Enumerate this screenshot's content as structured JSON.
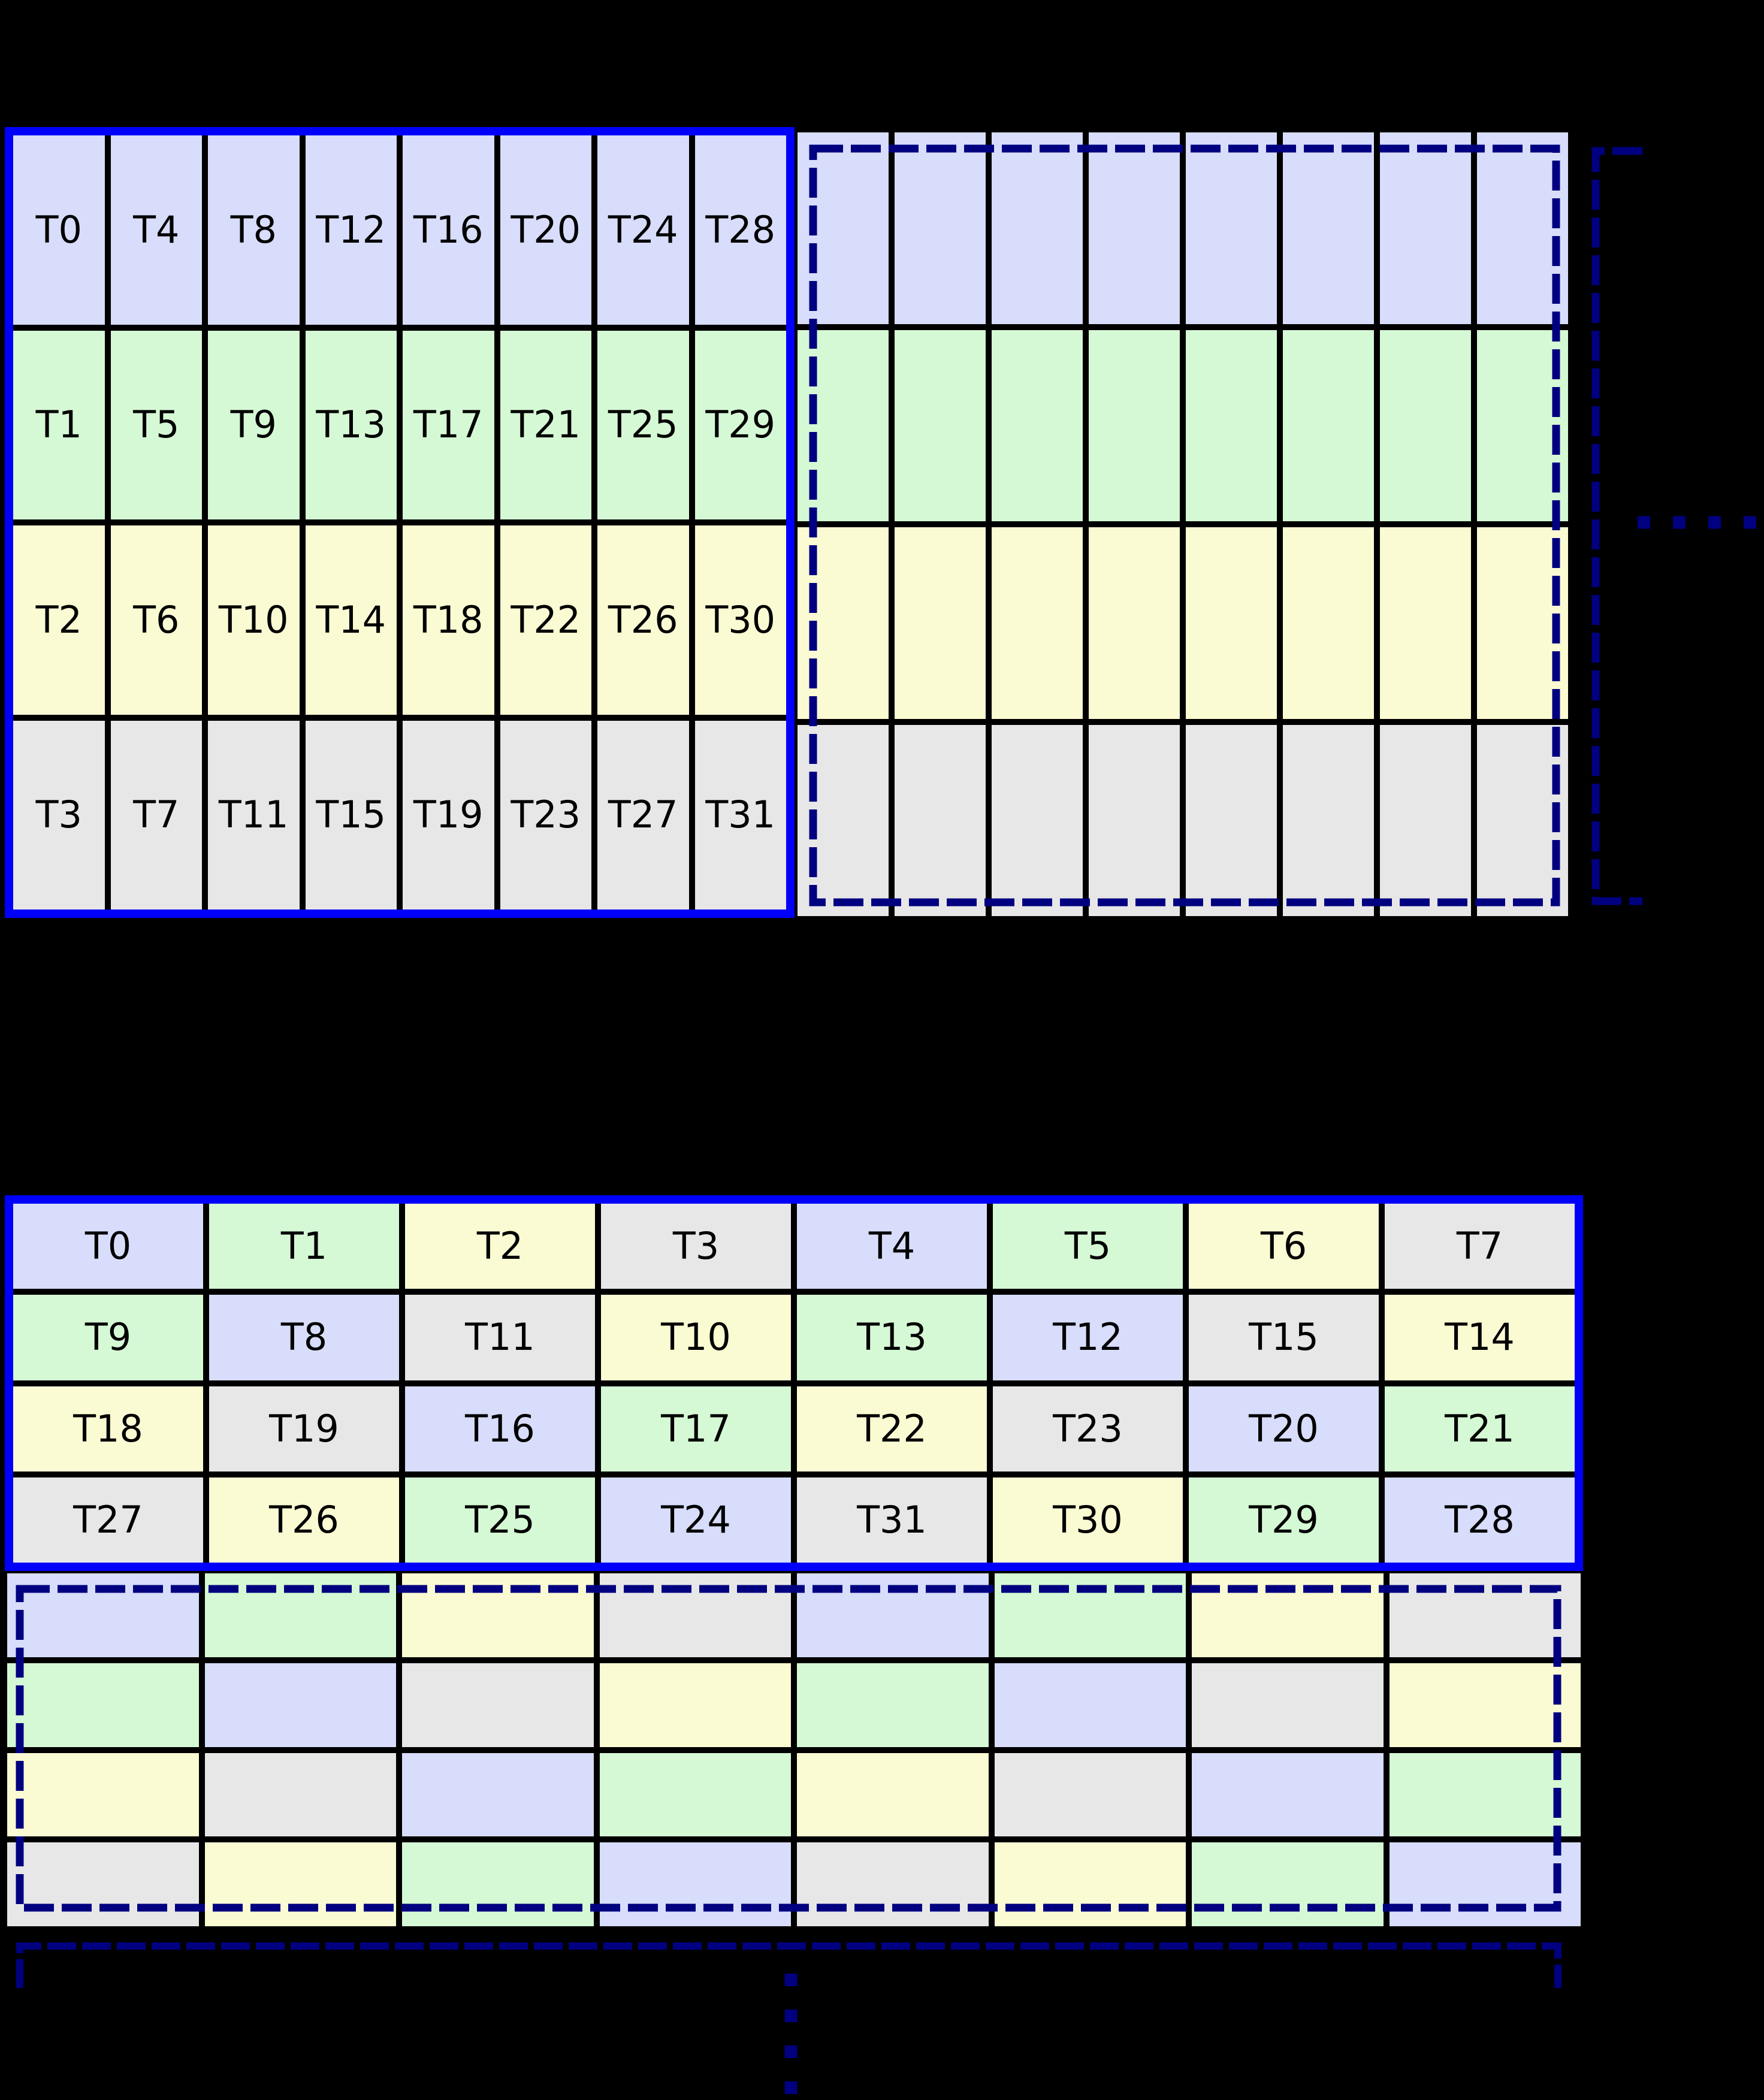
{
  "palette": {
    "background": "#000000",
    "grid_border_blue": "#0000fa",
    "dash_navy": "#000080",
    "cell_border_black": "#000000",
    "text": "#000000",
    "cell_colors": {
      "lavender": "#d7ddfa",
      "green": "#d5f9d4",
      "yellow": "#fbfbd3",
      "gray": "#e7e7e8"
    }
  },
  "color_order": [
    "lavender",
    "green",
    "yellow",
    "gray"
  ],
  "top_section": {
    "labeled_grid": {
      "cols": 8,
      "rows": [
        {
          "colors": [
            0,
            0,
            0,
            0,
            0,
            0,
            0,
            0
          ],
          "labels": [
            "T0",
            "T4",
            "T8",
            "T12",
            "T16",
            "T20",
            "T24",
            "T28"
          ]
        },
        {
          "colors": [
            1,
            1,
            1,
            1,
            1,
            1,
            1,
            1
          ],
          "labels": [
            "T1",
            "T5",
            "T9",
            "T13",
            "T17",
            "T21",
            "T25",
            "T29"
          ]
        },
        {
          "colors": [
            2,
            2,
            2,
            2,
            2,
            2,
            2,
            2
          ],
          "labels": [
            "T2",
            "T6",
            "T10",
            "T14",
            "T18",
            "T22",
            "T26",
            "T30"
          ]
        },
        {
          "colors": [
            3,
            3,
            3,
            3,
            3,
            3,
            3,
            3
          ],
          "labels": [
            "T3",
            "T7",
            "T11",
            "T15",
            "T19",
            "T23",
            "T27",
            "T31"
          ]
        }
      ]
    },
    "continuation_grid": {
      "cols": 8,
      "rows": [
        {
          "colors": [
            0,
            0,
            0,
            0,
            0,
            0,
            0,
            0
          ],
          "labels": [
            "",
            "",
            "",
            "",
            "",
            "",
            "",
            ""
          ]
        },
        {
          "colors": [
            1,
            1,
            1,
            1,
            1,
            1,
            1,
            1
          ],
          "labels": [
            "",
            "",
            "",
            "",
            "",
            "",
            "",
            ""
          ]
        },
        {
          "colors": [
            2,
            2,
            2,
            2,
            2,
            2,
            2,
            2
          ],
          "labels": [
            "",
            "",
            "",
            "",
            "",
            "",
            "",
            ""
          ]
        },
        {
          "colors": [
            3,
            3,
            3,
            3,
            3,
            3,
            3,
            3
          ],
          "labels": [
            "",
            "",
            "",
            "",
            "",
            "",
            "",
            ""
          ]
        }
      ]
    },
    "continuation_marks": {
      "bracket_side": "right",
      "dot_count": 4,
      "dot_direction": "horizontal"
    }
  },
  "bottom_section": {
    "labeled_grid": {
      "cols": 8,
      "rows": [
        {
          "colors": [
            0,
            1,
            2,
            3,
            0,
            1,
            2,
            3
          ],
          "labels": [
            "T0",
            "T1",
            "T2",
            "T3",
            "T4",
            "T5",
            "T6",
            "T7"
          ]
        },
        {
          "colors": [
            1,
            0,
            3,
            2,
            1,
            0,
            3,
            2
          ],
          "labels": [
            "T9",
            "T8",
            "T11",
            "T10",
            "T13",
            "T12",
            "T15",
            "T14"
          ]
        },
        {
          "colors": [
            2,
            3,
            0,
            1,
            2,
            3,
            0,
            1
          ],
          "labels": [
            "T18",
            "T19",
            "T16",
            "T17",
            "T22",
            "T23",
            "T20",
            "T21"
          ]
        },
        {
          "colors": [
            3,
            2,
            1,
            0,
            3,
            2,
            1,
            0
          ],
          "labels": [
            "T27",
            "T26",
            "T25",
            "T24",
            "T31",
            "T30",
            "T29",
            "T28"
          ]
        }
      ]
    },
    "continuation_grid": {
      "cols": 8,
      "rows": [
        {
          "colors": [
            0,
            1,
            2,
            3,
            0,
            1,
            2,
            3
          ],
          "labels": [
            "",
            "",
            "",
            "",
            "",
            "",
            "",
            ""
          ]
        },
        {
          "colors": [
            1,
            0,
            3,
            2,
            1,
            0,
            3,
            2
          ],
          "labels": [
            "",
            "",
            "",
            "",
            "",
            "",
            "",
            ""
          ]
        },
        {
          "colors": [
            2,
            3,
            0,
            1,
            2,
            3,
            0,
            1
          ],
          "labels": [
            "",
            "",
            "",
            "",
            "",
            "",
            "",
            ""
          ]
        },
        {
          "colors": [
            3,
            2,
            1,
            0,
            3,
            2,
            1,
            0
          ],
          "labels": [
            "",
            "",
            "",
            "",
            "",
            "",
            "",
            ""
          ]
        }
      ]
    },
    "continuation_marks": {
      "bracket_side": "bottom",
      "dot_count": 4,
      "dot_direction": "vertical"
    }
  }
}
